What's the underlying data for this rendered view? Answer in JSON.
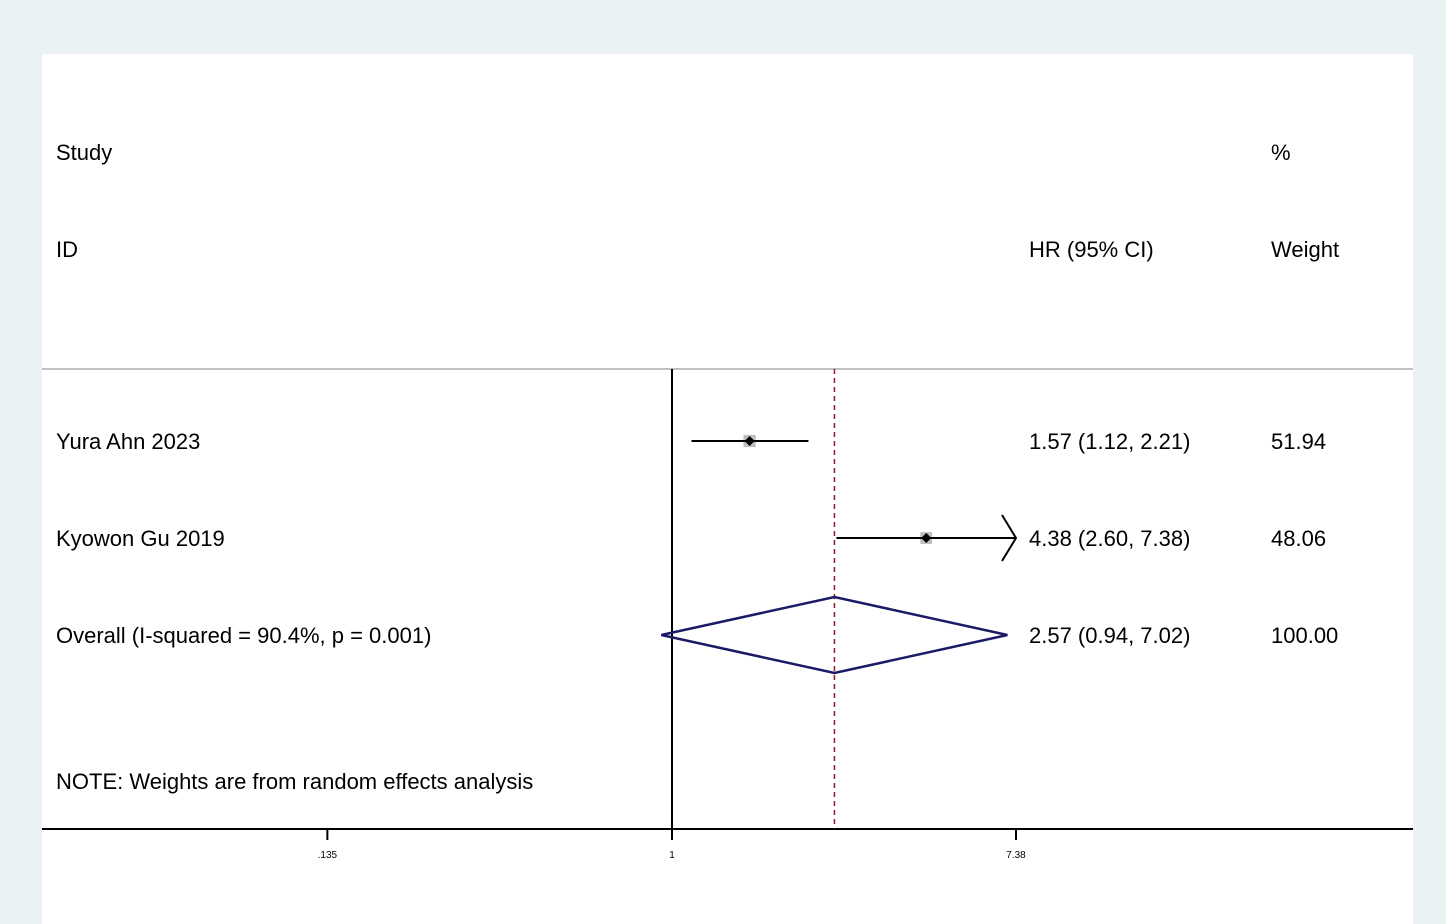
{
  "header": {
    "study_line1": "Study",
    "study_line2": "ID",
    "effect_header": "HR (95% CI)",
    "weight_line1": "%",
    "weight_line2": "Weight"
  },
  "note": "NOTE: Weights are from random effects analysis",
  "chart_data": {
    "type": "forest",
    "scale": "log",
    "null_value": 1,
    "pooled_estimate": 2.57,
    "xticks": [
      0.135,
      1,
      7.38
    ],
    "xtick_labels": [
      ".135",
      "1",
      "7.38"
    ],
    "studies": [
      {
        "label": "Yura Ahn 2023",
        "hr": 1.57,
        "lo": 1.12,
        "hi": 2.21,
        "ci_text": "1.57 (1.12, 2.21)",
        "weight_text": "51.94",
        "clipped": false
      },
      {
        "label": "Kyowon Gu 2019",
        "hr": 4.38,
        "lo": 2.6,
        "hi": 7.38,
        "ci_text": "4.38 (2.60, 7.38)",
        "weight_text": "48.06",
        "clipped": true
      }
    ],
    "overall": {
      "label": "Overall  (I-squared = 90.4%, p = 0.001)",
      "hr": 2.57,
      "lo": 0.94,
      "hi": 7.02,
      "ci_text": "2.57 (0.94, 7.02)",
      "weight_text": "100.00"
    },
    "colors": {
      "ci_line": "#000000",
      "marker": "#000000",
      "weight_box": "#bdbdbd",
      "diamond": "#1a1a66",
      "pooled_line": "#8b1a2a",
      "null_line": "#000000",
      "separator": "#c0c0c0"
    }
  }
}
